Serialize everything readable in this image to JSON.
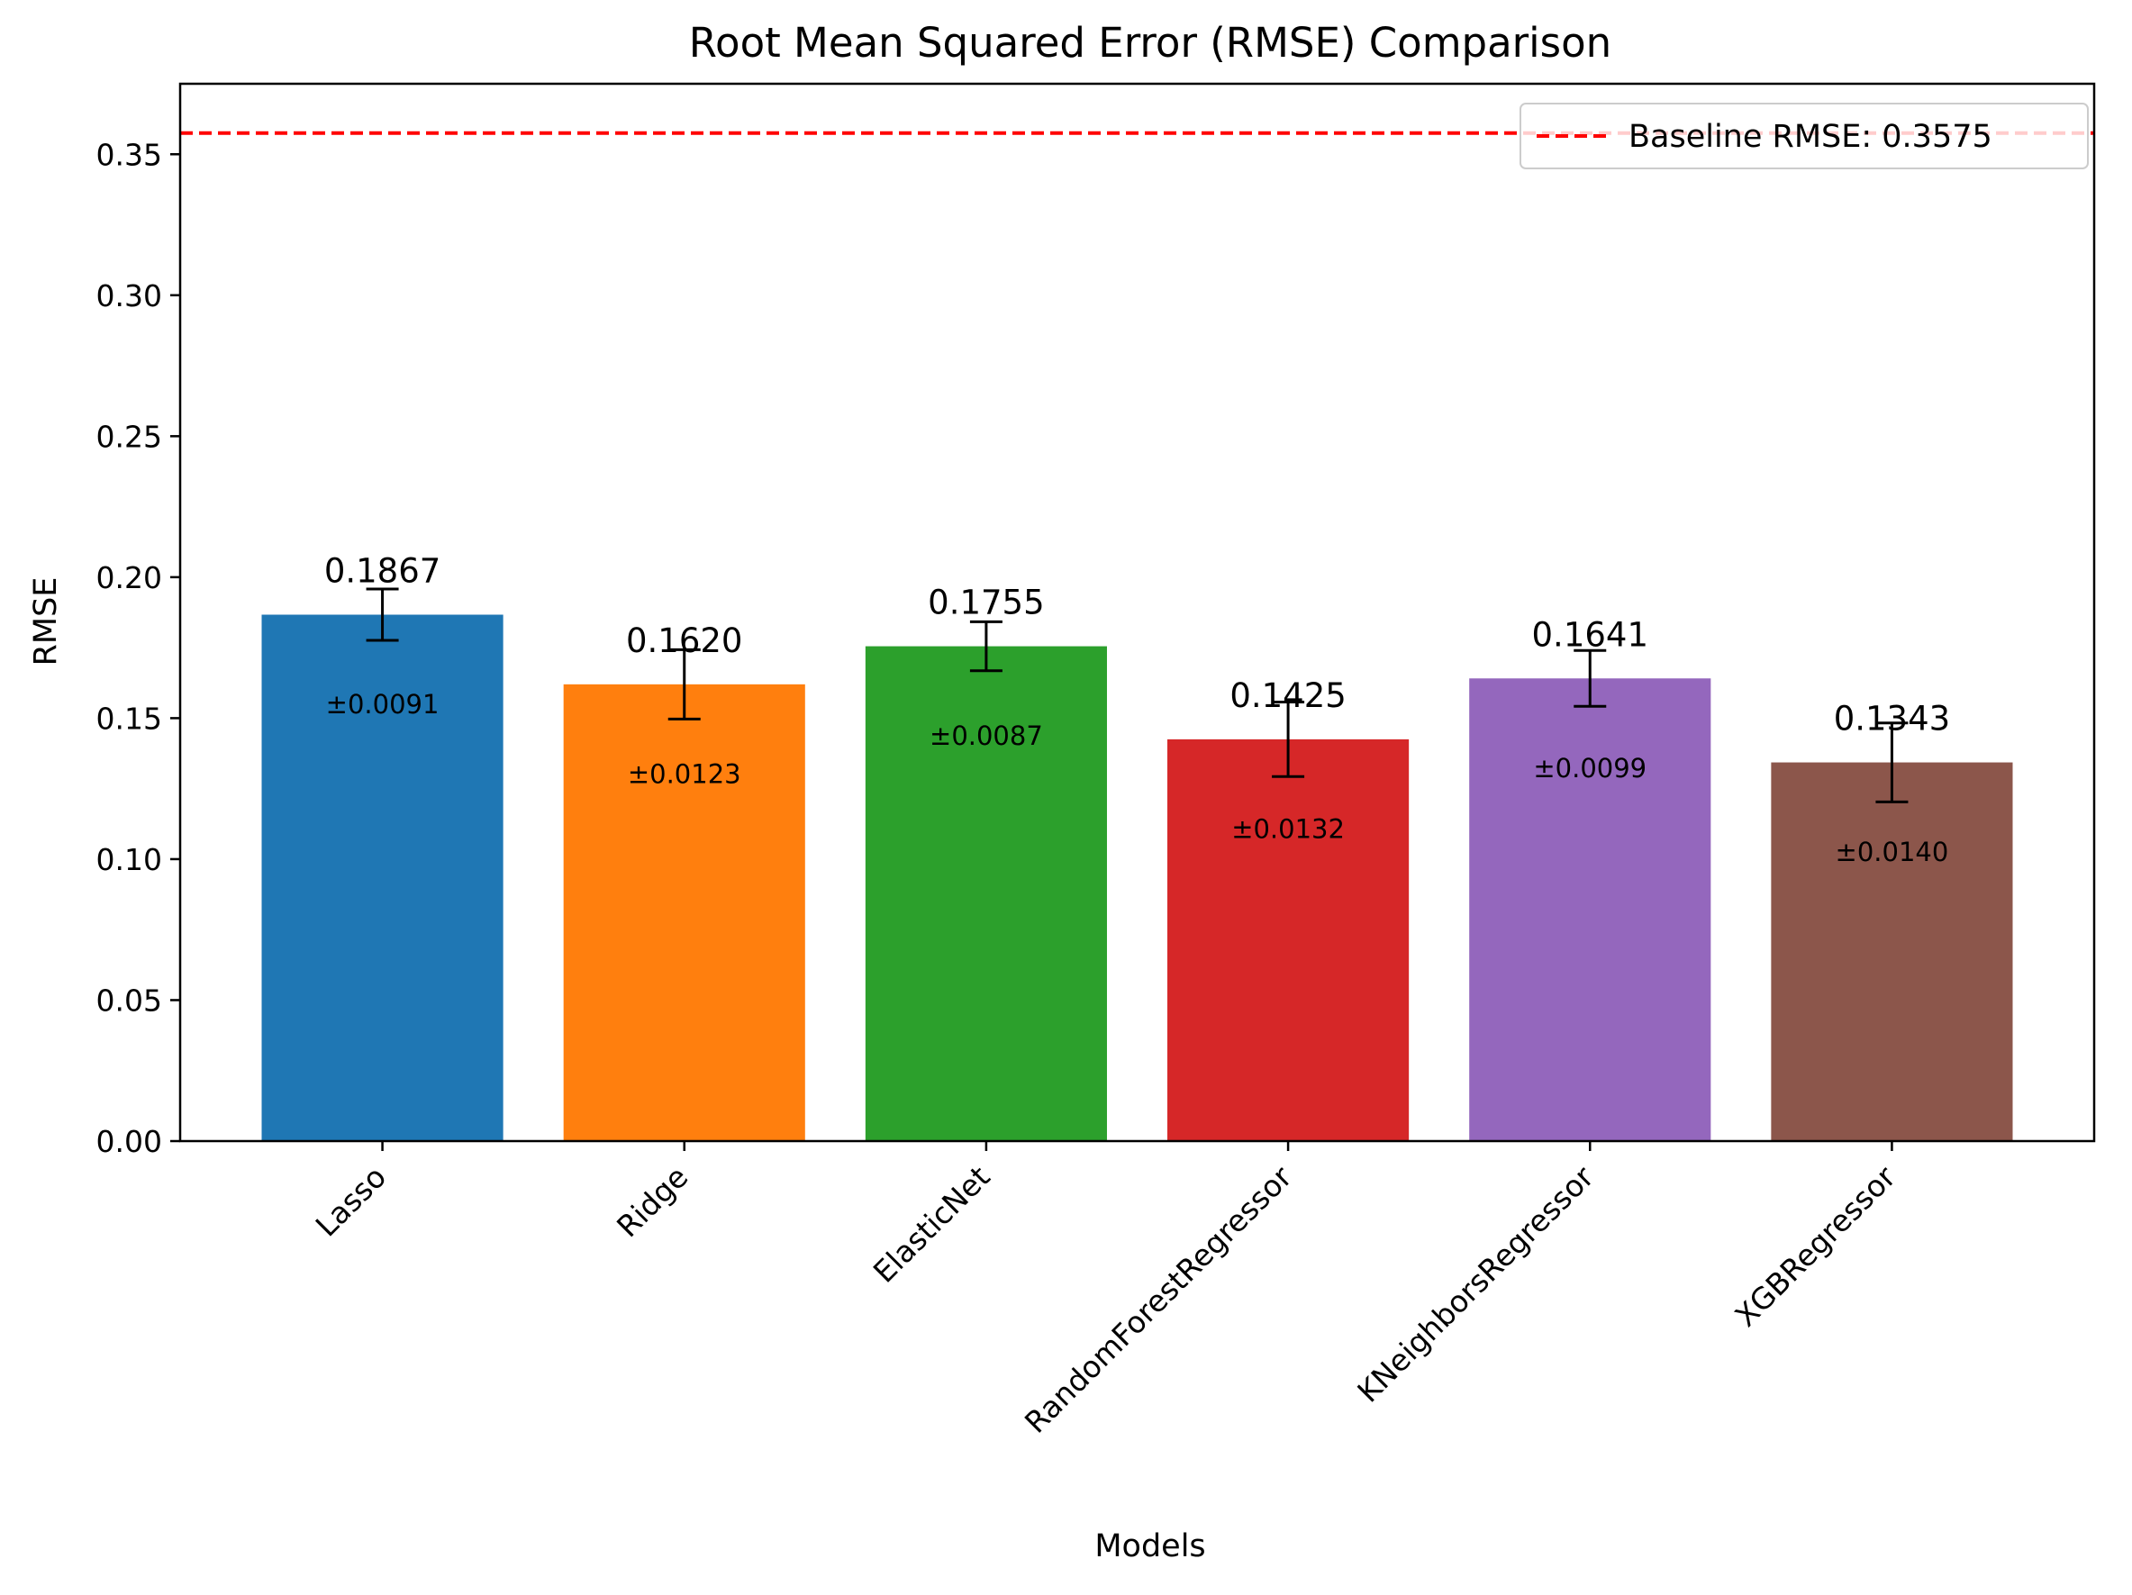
{
  "chart_data": {
    "type": "bar",
    "title": "Root Mean Squared Error (RMSE) Comparison",
    "xlabel": "Models",
    "ylabel": "RMSE",
    "categories": [
      "Lasso",
      "Ridge",
      "ElasticNet",
      "RandomForestRegressor",
      "KNeighborsRegressor",
      "XGBRegressor"
    ],
    "values": [
      0.1867,
      0.162,
      0.1755,
      0.1425,
      0.1641,
      0.1343
    ],
    "errors": [
      0.0091,
      0.0123,
      0.0087,
      0.0132,
      0.0099,
      0.014
    ],
    "value_labels": [
      "0.1867",
      "0.1620",
      "0.1755",
      "0.1425",
      "0.1641",
      "0.1343"
    ],
    "error_labels": [
      "±0.0091",
      "±0.0123",
      "±0.0087",
      "±0.0132",
      "±0.0099",
      "±0.0140"
    ],
    "colors": [
      "#1f77b4",
      "#ff7f0e",
      "#2ca02c",
      "#d62728",
      "#9467bd",
      "#8c564b"
    ],
    "ylim": [
      0,
      0.375
    ],
    "yticks": [
      0.0,
      0.05,
      0.1,
      0.15,
      0.2,
      0.25,
      0.3,
      0.35
    ],
    "ytick_labels": [
      "0.00",
      "0.05",
      "0.10",
      "0.15",
      "0.20",
      "0.25",
      "0.30",
      "0.35"
    ],
    "baseline": {
      "value": 0.3575,
      "label": "Baseline RMSE: 0.3575",
      "color": "#ff0000",
      "style": "dashed"
    },
    "legend": {
      "placement": "upper-right",
      "entries": [
        "Baseline RMSE: 0.3575"
      ]
    },
    "grid": false
  }
}
